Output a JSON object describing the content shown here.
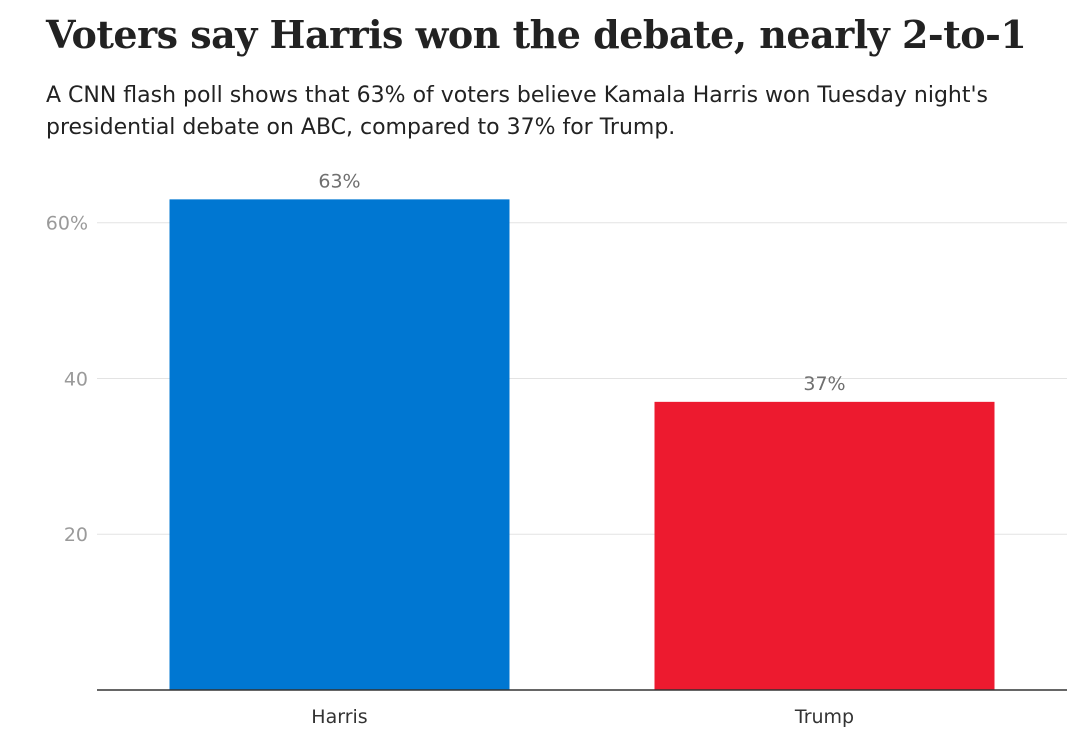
{
  "title": "Voters say Harris won the debate, nearly 2-to-1",
  "subtitle": "A CNN flash poll shows that 63% of voters believe Kamala Harris won Tuesday night's presidential debate on ABC, compared to 37% for Trump.",
  "chart_data": {
    "type": "bar",
    "title": "Voters say Harris won the debate, nearly 2-to-1",
    "subtitle": "A CNN flash poll shows that 63% of voters believe Kamala Harris won Tuesday night's presidential debate on ABC, compared to 37% for Trump.",
    "categories": [
      "Harris",
      "Trump"
    ],
    "values": [
      63,
      37
    ],
    "data_labels": [
      "63%",
      "37%"
    ],
    "colors": [
      "#0077d2",
      "#ed1a2f"
    ],
    "xlabel": "",
    "ylabel": "",
    "ylim": [
      0,
      66
    ],
    "yticks": [
      20,
      40,
      60
    ],
    "ytick_labels": [
      "20",
      "40",
      "60%"
    ],
    "grid": true,
    "legend": "none"
  }
}
